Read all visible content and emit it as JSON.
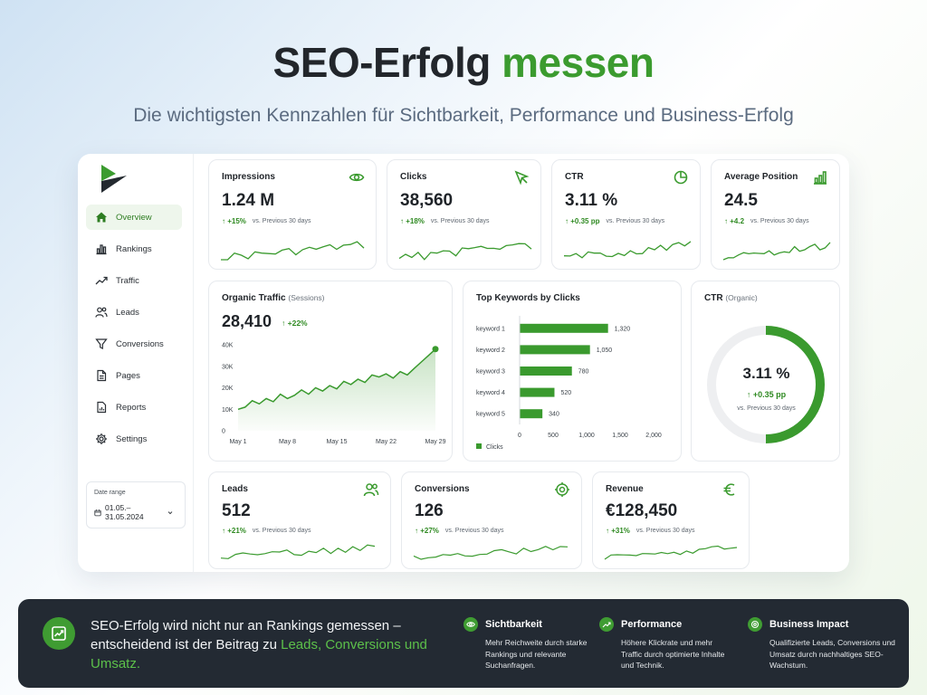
{
  "hero": {
    "title_main": "SEO-Erfolg",
    "title_accent": "messen",
    "subtitle": "Die wichtigsten Kennzahlen für Sichtbarkeit, Performance und Business-Erfolg"
  },
  "colors": {
    "accent": "#3b9b2f",
    "dark_banner": "#232a33",
    "bar": "#3a9a2e"
  },
  "sidebar": {
    "items": [
      {
        "label": "Overview",
        "icon": "home-icon"
      },
      {
        "label": "Rankings",
        "icon": "bar-chart-icon"
      },
      {
        "label": "Traffic",
        "icon": "trend-icon"
      },
      {
        "label": "Leads",
        "icon": "users-icon"
      },
      {
        "label": "Conversions",
        "icon": "filter-icon"
      },
      {
        "label": "Pages",
        "icon": "page-icon"
      },
      {
        "label": "Reports",
        "icon": "report-icon"
      },
      {
        "label": "Settings",
        "icon": "gear-icon"
      }
    ],
    "date_range_label": "Date range",
    "date_range_value": "01.05.–31.05.2024"
  },
  "kpis_top": [
    {
      "title": "Impressions",
      "value": "1.24 M",
      "delta": "+15%",
      "note": "vs. Previous 30 days",
      "icon": "eye-icon"
    },
    {
      "title": "Clicks",
      "value": "38,560",
      "delta": "+18%",
      "note": "vs. Previous 30 days",
      "icon": "cursor-icon"
    },
    {
      "title": "CTR",
      "value": "3.11 %",
      "delta": "+0.35 pp",
      "note": "vs. Previous 30 days",
      "icon": "target-percent-icon"
    },
    {
      "title": "Average Position",
      "value": "24.5",
      "delta": "+4.2",
      "note": "vs. Previous 30 days",
      "icon": "bar-chart-icon"
    }
  ],
  "kpis_bottom": [
    {
      "title": "Leads",
      "value": "512",
      "delta": "+21%",
      "note": "vs. Previous 30 days",
      "icon": "users-icon"
    },
    {
      "title": "Conversions",
      "value": "126",
      "delta": "+27%",
      "note": "vs. Previous 30 days",
      "icon": "target-icon"
    },
    {
      "title": "Revenue",
      "value": "€128,450",
      "delta": "+31%",
      "note": "vs. Previous 30 days",
      "icon": "euro-icon"
    }
  ],
  "organic_traffic": {
    "title": "Organic Traffic",
    "title_suffix": "(Sessions)",
    "value": "28,410",
    "delta": "+22%"
  },
  "top_keywords": {
    "title": "Top Keywords by Clicks",
    "legend": "Clicks"
  },
  "ctr_donut": {
    "title": "CTR",
    "title_suffix": "(Organic)",
    "value": "3.11 %",
    "delta": "+0.35 pp",
    "note": "vs. Previous 30 days",
    "fill_fraction": 0.5
  },
  "chart_data": [
    {
      "type": "area",
      "x": [
        "May 1",
        "May 2",
        "May 3",
        "May 4",
        "May 5",
        "May 6",
        "May 7",
        "May 8",
        "May 9",
        "May 10",
        "May 11",
        "May 12",
        "May 13",
        "May 14",
        "May 15",
        "May 16",
        "May 17",
        "May 18",
        "May 19",
        "May 20",
        "May 21",
        "May 22",
        "May 23",
        "May 24",
        "May 25",
        "May 26",
        "May 27",
        "May 28",
        "May 29"
      ],
      "xticks": [
        "May 1",
        "May 8",
        "May 15",
        "May 22",
        "May 29"
      ],
      "values": [
        10000,
        11000,
        14000,
        12500,
        15000,
        13500,
        17000,
        15000,
        16500,
        19000,
        17000,
        20000,
        18500,
        21000,
        19500,
        23000,
        21500,
        24000,
        22500,
        26000,
        25000,
        26500,
        24500,
        27500,
        26000,
        29000,
        32000,
        35000,
        38000
      ],
      "yticks": [
        "0",
        "10K",
        "20K",
        "30K",
        "40K"
      ],
      "ylim": [
        0,
        40000
      ]
    },
    {
      "type": "bar",
      "orientation": "horizontal",
      "categories": [
        "keyword 1",
        "keyword 2",
        "keyword 3",
        "keyword 4",
        "keyword 5"
      ],
      "values": [
        1320,
        1050,
        780,
        520,
        340
      ],
      "value_labels": [
        "1,320",
        "1,050",
        "780",
        "520",
        "340"
      ],
      "xticks": [
        "0",
        "500",
        "1,000",
        "1,500",
        "2,000"
      ],
      "xlim": [
        0,
        2000
      ]
    }
  ],
  "footer": {
    "text_main": "SEO-Erfolg wird nicht nur an Rankings gemessen – entscheidend ist der Beitrag zu ",
    "text_accent": "Leads, Conversions und Umsatz.",
    "cols": [
      {
        "title": "Sichtbarkeit",
        "desc": "Mehr Reichweite durch starke Rankings und relevante Suchanfragen.",
        "icon": "eye-icon"
      },
      {
        "title": "Performance",
        "desc": "Höhere Klickrate und mehr Traffic durch optimierte Inhalte und Technik.",
        "icon": "trend-icon"
      },
      {
        "title": "Business Impact",
        "desc": "Qualifizierte Leads, Conversions und Umsatz durch nachhaltiges SEO-Wachstum.",
        "icon": "target-icon"
      }
    ]
  }
}
